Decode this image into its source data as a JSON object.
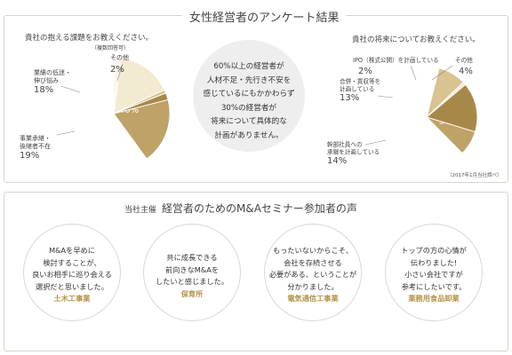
{
  "survey": {
    "title": "女性経営者のアンケート結果"
  },
  "center": {
    "lines": [
      "60%以上の経営者が",
      "人材不足・先行き不安を",
      "感じているにもかかわらず",
      "30%の経営者が",
      "将来について具体的な",
      "計画がありません。"
    ]
  },
  "chart_data": [
    {
      "type": "pie",
      "title": "貴社の抱える課題をお教えください。",
      "note": "（複数回答可）",
      "slices": [
        {
          "label_lines": [
            "人材不足"
          ],
          "value": 40,
          "value_label": "40%",
          "color": "#bfa267"
        },
        {
          "label_lines": [
            "先行き不安"
          ],
          "value": 21,
          "value_label": "21%",
          "color": "#a88849"
        },
        {
          "label_lines": [
            "事業承継・",
            "後継者不在"
          ],
          "value": 19,
          "value_label": "19%",
          "color": "#d8c391"
        },
        {
          "label_lines": [
            "業績の低迷・",
            "伸び悩み"
          ],
          "value": 18,
          "value_label": "18%",
          "color": "#f3ead2"
        },
        {
          "label_lines": [
            "その他"
          ],
          "value": 2,
          "value_label": "2%",
          "color": "#faf6ec"
        }
      ]
    },
    {
      "type": "pie",
      "title": "貴社の将来についてお教えください。",
      "note": "（2017年1月当社調べ）",
      "slices": [
        {
          "label_lines": [
            "ご子息への",
            "承継を",
            "計画している"
          ],
          "value": 38,
          "value_label": "38%",
          "color": "#bfa267"
        },
        {
          "label_lines": [
            "具体的な",
            "計画はない"
          ],
          "value": 30,
          "value_label": "30%",
          "color": "#a88849"
        },
        {
          "label_lines": [
            "幹部社員への",
            "承継を計画している"
          ],
          "value": 14,
          "value_label": "14%",
          "color": "#f3ead2"
        },
        {
          "label_lines": [
            "合併・買収等を",
            "計画している"
          ],
          "value": 13,
          "value_label": "13%",
          "color": "#d8c391"
        },
        {
          "label_lines": [
            "IPO（株式公開）を計画している"
          ],
          "value": 2,
          "value_label": "2%",
          "color": "#faf6ec"
        },
        {
          "label_lines": [
            "その他"
          ],
          "value": 4,
          "value_label": "4%",
          "color": "#ffffff"
        }
      ]
    }
  ],
  "seminar": {
    "organizer": "当社主催",
    "title": "経営者のためのM&Aセミナー参加者の声"
  },
  "voices": [
    {
      "lines": [
        "M&Aを早めに",
        "検討することが、",
        "良いお相手に巡り会える",
        "選択だと思いました。"
      ],
      "industry": "土木工事業"
    },
    {
      "lines": [
        "共に成長できる",
        "前向きなM&Aを",
        "したいと感じました。"
      ],
      "industry": "保育所"
    },
    {
      "lines": [
        "もったいないからこそ、",
        "会社を存続させる",
        "必要がある、ということが",
        "分かりました。"
      ],
      "industry": "電気通信工事業"
    },
    {
      "lines": [
        "トップの方の心情が",
        "伝わりました!",
        "小さい会社ですが",
        "参考にしたいです。"
      ],
      "industry": "業務用食品卸業"
    }
  ],
  "colors": {
    "accent": "#b5924a",
    "border": "#d8d4cc",
    "center_bg": "#eeeeee"
  }
}
